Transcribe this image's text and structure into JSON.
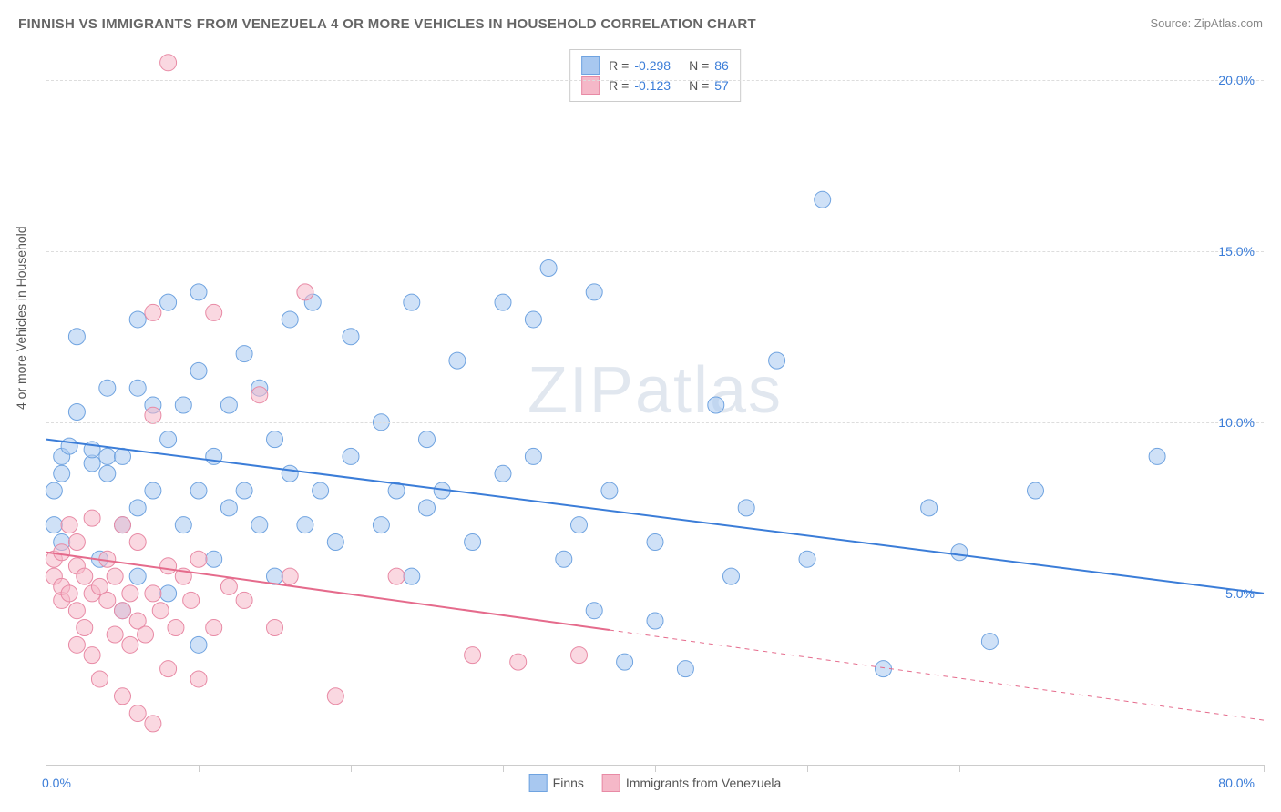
{
  "title": "FINNISH VS IMMIGRANTS FROM VENEZUELA 4 OR MORE VEHICLES IN HOUSEHOLD CORRELATION CHART",
  "source": "Source: ZipAtlas.com",
  "ylabel": "4 or more Vehicles in Household",
  "watermark": "ZIPatlas",
  "chart": {
    "type": "scatter",
    "xlim": [
      0,
      80
    ],
    "ylim": [
      0,
      21
    ],
    "xtick_positions": [
      0,
      10,
      20,
      30,
      40,
      50,
      60,
      70,
      80
    ],
    "xtick_labels_shown": {
      "left": "0.0%",
      "right": "80.0%"
    },
    "ytick_positions": [
      5,
      10,
      15,
      20
    ],
    "ytick_labels": [
      "5.0%",
      "10.0%",
      "15.0%",
      "20.0%"
    ],
    "grid_color": "#dddddd",
    "background_color": "#ffffff",
    "axis_color": "#cccccc",
    "tick_label_color": "#3b7dd8",
    "marker_radius": 9,
    "marker_opacity": 0.55,
    "line_width": 2,
    "series": [
      {
        "name": "Finns",
        "color_fill": "#a8c8f0",
        "color_stroke": "#6fa3e0",
        "line_color": "#3b7dd8",
        "R": "-0.298",
        "N": "86",
        "trend": {
          "x1": 0,
          "y1": 9.5,
          "x2": 80,
          "y2": 5.0,
          "dash_after_x": 80
        },
        "points": [
          [
            0.5,
            7.0
          ],
          [
            0.5,
            8.0
          ],
          [
            1,
            6.5
          ],
          [
            1,
            8.5
          ],
          [
            1,
            9.0
          ],
          [
            1.5,
            9.3
          ],
          [
            2,
            10.3
          ],
          [
            2,
            12.5
          ],
          [
            3,
            8.8
          ],
          [
            3,
            9.2
          ],
          [
            3.5,
            6.0
          ],
          [
            4,
            8.5
          ],
          [
            4,
            9.0
          ],
          [
            4,
            11.0
          ],
          [
            5,
            4.5
          ],
          [
            5,
            7.0
          ],
          [
            5,
            9.0
          ],
          [
            6,
            5.5
          ],
          [
            6,
            7.5
          ],
          [
            6,
            11.0
          ],
          [
            6,
            13.0
          ],
          [
            7,
            8.0
          ],
          [
            7,
            10.5
          ],
          [
            8,
            5.0
          ],
          [
            8,
            9.5
          ],
          [
            8,
            13.5
          ],
          [
            9,
            7.0
          ],
          [
            9,
            10.5
          ],
          [
            10,
            3.5
          ],
          [
            10,
            8.0
          ],
          [
            10,
            11.5
          ],
          [
            10,
            13.8
          ],
          [
            11,
            6.0
          ],
          [
            11,
            9.0
          ],
          [
            12,
            7.5
          ],
          [
            12,
            10.5
          ],
          [
            13,
            8.0
          ],
          [
            13,
            12.0
          ],
          [
            14,
            7.0
          ],
          [
            14,
            11.0
          ],
          [
            15,
            5.5
          ],
          [
            15,
            9.5
          ],
          [
            16,
            8.5
          ],
          [
            16,
            13.0
          ],
          [
            17,
            7.0
          ],
          [
            17.5,
            13.5
          ],
          [
            18,
            8.0
          ],
          [
            19,
            6.5
          ],
          [
            20,
            9.0
          ],
          [
            20,
            12.5
          ],
          [
            22,
            7.0
          ],
          [
            22,
            10.0
          ],
          [
            23,
            8.0
          ],
          [
            24,
            5.5
          ],
          [
            24,
            13.5
          ],
          [
            25,
            7.5
          ],
          [
            25,
            9.5
          ],
          [
            26,
            8.0
          ],
          [
            27,
            11.8
          ],
          [
            28,
            6.5
          ],
          [
            30,
            8.5
          ],
          [
            30,
            13.5
          ],
          [
            32,
            9.0
          ],
          [
            32,
            13.0
          ],
          [
            33,
            14.5
          ],
          [
            34,
            6.0
          ],
          [
            35,
            7.0
          ],
          [
            36,
            4.5
          ],
          [
            36,
            13.8
          ],
          [
            37,
            8.0
          ],
          [
            38,
            3.0
          ],
          [
            40,
            4.2
          ],
          [
            40,
            6.5
          ],
          [
            42,
            2.8
          ],
          [
            44,
            10.5
          ],
          [
            45,
            5.5
          ],
          [
            46,
            7.5
          ],
          [
            48,
            11.8
          ],
          [
            50,
            6.0
          ],
          [
            51,
            16.5
          ],
          [
            55,
            2.8
          ],
          [
            58,
            7.5
          ],
          [
            60,
            6.2
          ],
          [
            62,
            3.6
          ],
          [
            65,
            8.0
          ],
          [
            73,
            9.0
          ]
        ]
      },
      {
        "name": "Immigrants from Venezuela",
        "color_fill": "#f5b8c8",
        "color_stroke": "#e88aa5",
        "line_color": "#e56b8c",
        "R": "-0.123",
        "N": "57",
        "trend": {
          "x1": 0,
          "y1": 6.2,
          "x2": 80,
          "y2": 1.3,
          "dash_after_x": 37
        },
        "points": [
          [
            0.5,
            5.5
          ],
          [
            0.5,
            6.0
          ],
          [
            1,
            4.8
          ],
          [
            1,
            5.2
          ],
          [
            1,
            6.2
          ],
          [
            1.5,
            5.0
          ],
          [
            1.5,
            7.0
          ],
          [
            2,
            3.5
          ],
          [
            2,
            4.5
          ],
          [
            2,
            5.8
          ],
          [
            2,
            6.5
          ],
          [
            2.5,
            4.0
          ],
          [
            2.5,
            5.5
          ],
          [
            3,
            3.2
          ],
          [
            3,
            5.0
          ],
          [
            3,
            7.2
          ],
          [
            3.5,
            2.5
          ],
          [
            3.5,
            5.2
          ],
          [
            4,
            4.8
          ],
          [
            4,
            6.0
          ],
          [
            4.5,
            3.8
          ],
          [
            4.5,
            5.5
          ],
          [
            5,
            2.0
          ],
          [
            5,
            4.5
          ],
          [
            5,
            7.0
          ],
          [
            5.5,
            3.5
          ],
          [
            5.5,
            5.0
          ],
          [
            6,
            1.5
          ],
          [
            6,
            4.2
          ],
          [
            6,
            6.5
          ],
          [
            6.5,
            3.8
          ],
          [
            7,
            1.2
          ],
          [
            7,
            5.0
          ],
          [
            7,
            10.2
          ],
          [
            7,
            13.2
          ],
          [
            7.5,
            4.5
          ],
          [
            8,
            2.8
          ],
          [
            8,
            5.8
          ],
          [
            8,
            20.5
          ],
          [
            8.5,
            4.0
          ],
          [
            9,
            5.5
          ],
          [
            9.5,
            4.8
          ],
          [
            10,
            2.5
          ],
          [
            10,
            6.0
          ],
          [
            11,
            4.0
          ],
          [
            11,
            13.2
          ],
          [
            12,
            5.2
          ],
          [
            13,
            4.8
          ],
          [
            14,
            10.8
          ],
          [
            15,
            4.0
          ],
          [
            16,
            5.5
          ],
          [
            17,
            13.8
          ],
          [
            19,
            2.0
          ],
          [
            23,
            5.5
          ],
          [
            28,
            3.2
          ],
          [
            31,
            3.0
          ],
          [
            35,
            3.2
          ]
        ]
      }
    ],
    "legend_bottom": [
      {
        "label": "Finns",
        "fill": "#a8c8f0",
        "stroke": "#6fa3e0"
      },
      {
        "label": "Immigrants from Venezuela",
        "fill": "#f5b8c8",
        "stroke": "#e88aa5"
      }
    ]
  }
}
